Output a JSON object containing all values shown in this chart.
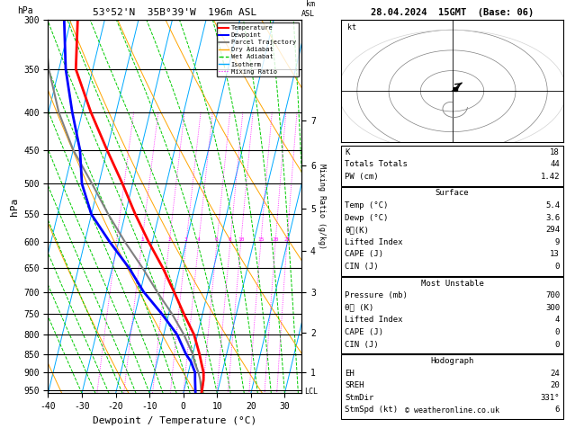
{
  "title_left": "53°52'N  35B°39'W  196m ASL",
  "title_right": "28.04.2024  15GMT  (Base: 06)",
  "xlabel": "Dewpoint / Temperature (°C)",
  "ylabel_left": "hPa",
  "ylabel_right_km": "km\nASL",
  "ylabel_mixing": "Mixing Ratio (g/kg)",
  "pressure_levels": [
    300,
    350,
    400,
    450,
    500,
    550,
    600,
    650,
    700,
    750,
    800,
    850,
    900,
    950
  ],
  "xmin": -40,
  "xmax": 35,
  "pmin": 300,
  "pmax": 960,
  "bg_color": "#ffffff",
  "temp_color": "#ff0000",
  "dewp_color": "#0000ff",
  "parcel_color": "#808080",
  "dry_adiabat_color": "#ffa500",
  "wet_adiabat_color": "#00cc00",
  "isotherm_color": "#00aaff",
  "mixing_ratio_color": "#ff00ff",
  "temp_pressures": [
    960,
    920,
    900,
    870,
    850,
    800,
    750,
    700,
    650,
    600,
    550,
    500,
    450,
    400,
    350,
    300
  ],
  "temp_temps": [
    5.4,
    5.0,
    4.5,
    3.0,
    2.0,
    -1.0,
    -5.5,
    -10.0,
    -15.0,
    -21.0,
    -27.0,
    -33.0,
    -40.0,
    -47.5,
    -55.0,
    -58.0
  ],
  "dewp_temps": [
    3.6,
    2.5,
    2.0,
    0.0,
    -2.0,
    -6.0,
    -12.0,
    -19.0,
    -25.0,
    -32.5,
    -40.0,
    -45.0,
    -48.0,
    -53.0,
    -58.0,
    -62.0
  ],
  "parcel_temps": [
    5.4,
    4.0,
    3.0,
    1.0,
    0.0,
    -4.0,
    -9.0,
    -15.0,
    -21.0,
    -28.0,
    -35.0,
    -42.0,
    -50.0,
    -57.0,
    -63.0,
    -68.0
  ],
  "mixing_ratios": [
    0.5,
    1,
    2,
    3,
    4,
    6,
    8,
    10,
    15,
    20,
    25
  ],
  "mixing_label_vals": [
    1,
    2,
    3,
    4,
    6,
    8,
    10,
    15,
    20,
    25
  ],
  "mixing_label_p": 600,
  "km_labels": [
    1,
    2,
    3,
    4,
    5,
    6,
    7
  ],
  "lcl_p": 955,
  "skew": 23.0,
  "stats_K": 18,
  "stats_TT": 44,
  "stats_PW": 1.42,
  "surf_temp": 5.4,
  "surf_dewp": 3.6,
  "surf_theta_e": 294,
  "surf_li": 9,
  "surf_cape": 13,
  "surf_cin": 0,
  "mu_press": 700,
  "mu_theta_e": 300,
  "mu_li": 4,
  "mu_cape": 0,
  "mu_cin": 0,
  "hodo_eh": 24,
  "hodo_sreh": 20,
  "hodo_stmdir": "331°",
  "hodo_stmspd": 6,
  "copyright": "© weatheronline.co.uk"
}
